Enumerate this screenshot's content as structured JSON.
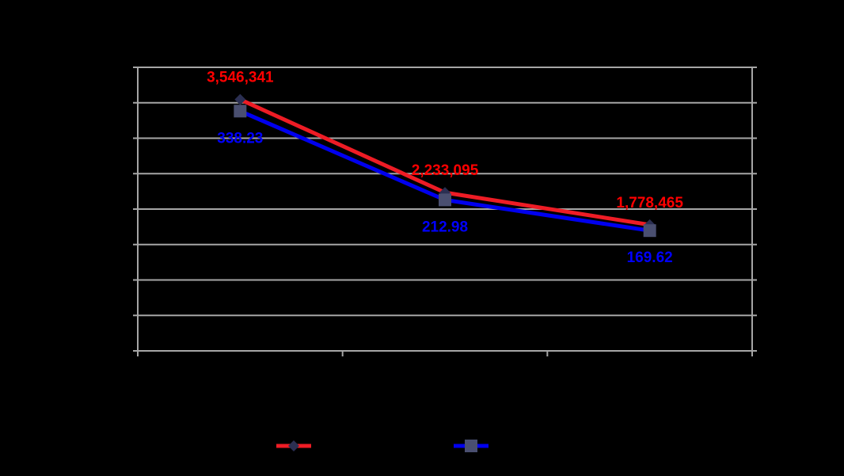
{
  "chart_data": {
    "type": "line",
    "categories": [
      "",
      "",
      ""
    ],
    "ylim": [
      0,
      4000000
    ],
    "grid": true,
    "legend_position": "bottom",
    "series": [
      {
        "values": [
          3546341,
          2233095,
          1778465
        ],
        "labels": [
          "3,546,341",
          "2,233,095",
          "1,778,465"
        ],
        "color": "#ee1c25",
        "label_color": "#ff0000",
        "marker": "diamond",
        "marker_color": "#2b2f52"
      },
      {
        "values": [
          338.23,
          212.98,
          169.62
        ],
        "labels": [
          "338.23",
          "212.98",
          "169.62"
        ],
        "color": "#0000ee",
        "label_color": "#0000ff",
        "marker": "square",
        "marker_color": "#4a4f70",
        "ylim": [
          0,
          400
        ]
      }
    ],
    "background_color": "#000000",
    "gridline_color": "#a6a6a6"
  }
}
